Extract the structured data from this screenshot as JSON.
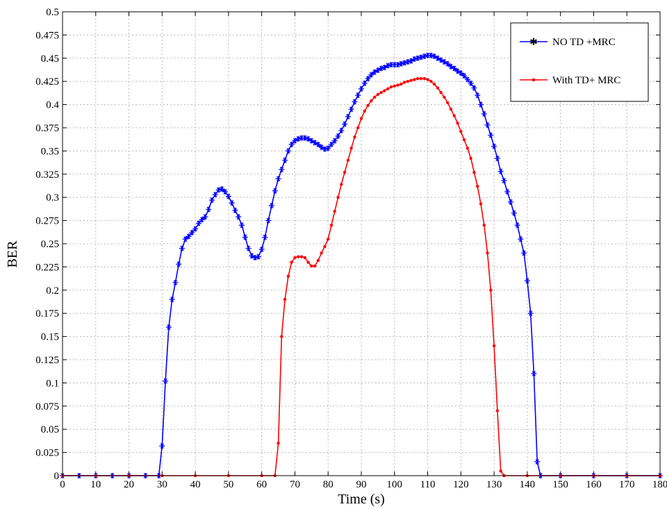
{
  "chart_data": {
    "type": "line",
    "title": "",
    "xlabel": "Time (s)",
    "ylabel": "BER",
    "xlim": [
      0,
      180
    ],
    "ylim": [
      0,
      0.5
    ],
    "x_ticks": [
      0,
      10,
      20,
      30,
      40,
      50,
      60,
      70,
      80,
      90,
      100,
      110,
      120,
      130,
      140,
      150,
      160,
      170,
      180
    ],
    "x_tick_labels": [
      "0",
      "10",
      "20",
      "30",
      "40",
      "50",
      "60",
      "70",
      "80",
      "90",
      "100",
      "110",
      "120",
      "130",
      "140",
      "150",
      "160",
      "170",
      "180"
    ],
    "y_ticks": [
      0,
      0.025,
      0.05,
      0.075,
      0.1,
      0.125,
      0.15,
      0.175,
      0.2,
      0.225,
      0.25,
      0.275,
      0.3,
      0.325,
      0.35,
      0.375,
      0.4,
      0.425,
      0.45,
      0.475,
      0.5
    ],
    "y_tick_labels": [
      "0",
      "0.025",
      "0.05",
      "0.075",
      "0.1",
      "0.125",
      "0.15",
      "0.175",
      "0.2",
      "0.225",
      "0.25",
      "0.275",
      "0.3",
      "0.325",
      "0.35",
      "0.375",
      "0.4",
      "0.425",
      "0.45",
      "0.475",
      "0.5"
    ],
    "grid": true,
    "legend_position": "top-right",
    "series": [
      {
        "name": "NO TD +MRC",
        "color": "#0000ff",
        "marker": "star",
        "points": [
          [
            0,
            0
          ],
          [
            5,
            0
          ],
          [
            10,
            0
          ],
          [
            15,
            0
          ],
          [
            20,
            0
          ],
          [
            25,
            0
          ],
          [
            29,
            0
          ],
          [
            30,
            0.032
          ],
          [
            31,
            0.102
          ],
          [
            32,
            0.16
          ],
          [
            33,
            0.19
          ],
          [
            34,
            0.208
          ],
          [
            35,
            0.228
          ],
          [
            36,
            0.245
          ],
          [
            37,
            0.255
          ],
          [
            38,
            0.258
          ],
          [
            39,
            0.262
          ],
          [
            40,
            0.266
          ],
          [
            41,
            0.272
          ],
          [
            42,
            0.276
          ],
          [
            43,
            0.279
          ],
          [
            44,
            0.287
          ],
          [
            45,
            0.297
          ],
          [
            46,
            0.303
          ],
          [
            47,
            0.308
          ],
          [
            48,
            0.309
          ],
          [
            49,
            0.306
          ],
          [
            50,
            0.301
          ],
          [
            51,
            0.294
          ],
          [
            52,
            0.286
          ],
          [
            53,
            0.279
          ],
          [
            54,
            0.27
          ],
          [
            55,
            0.257
          ],
          [
            56,
            0.245
          ],
          [
            57,
            0.237
          ],
          [
            58,
            0.235
          ],
          [
            59,
            0.236
          ],
          [
            60,
            0.244
          ],
          [
            61,
            0.257
          ],
          [
            62,
            0.275
          ],
          [
            63,
            0.291
          ],
          [
            64,
            0.307
          ],
          [
            65,
            0.32
          ],
          [
            66,
            0.33
          ],
          [
            67,
            0.34
          ],
          [
            68,
            0.35
          ],
          [
            69,
            0.357
          ],
          [
            70,
            0.361
          ],
          [
            71,
            0.363
          ],
          [
            72,
            0.364
          ],
          [
            73,
            0.364
          ],
          [
            74,
            0.363
          ],
          [
            75,
            0.361
          ],
          [
            76,
            0.359
          ],
          [
            77,
            0.357
          ],
          [
            78,
            0.354
          ],
          [
            79,
            0.352
          ],
          [
            80,
            0.353
          ],
          [
            81,
            0.357
          ],
          [
            82,
            0.361
          ],
          [
            83,
            0.366
          ],
          [
            84,
            0.372
          ],
          [
            85,
            0.379
          ],
          [
            86,
            0.387
          ],
          [
            87,
            0.395
          ],
          [
            88,
            0.403
          ],
          [
            89,
            0.41
          ],
          [
            90,
            0.417
          ],
          [
            91,
            0.423
          ],
          [
            92,
            0.428
          ],
          [
            93,
            0.432
          ],
          [
            94,
            0.435
          ],
          [
            95,
            0.437
          ],
          [
            96,
            0.439
          ],
          [
            97,
            0.44
          ],
          [
            98,
            0.442
          ],
          [
            99,
            0.443
          ],
          [
            100,
            0.443
          ],
          [
            101,
            0.443
          ],
          [
            102,
            0.444
          ],
          [
            103,
            0.445
          ],
          [
            104,
            0.446
          ],
          [
            105,
            0.447
          ],
          [
            106,
            0.449
          ],
          [
            107,
            0.45
          ],
          [
            108,
            0.451
          ],
          [
            109,
            0.452
          ],
          [
            110,
            0.453
          ],
          [
            111,
            0.453
          ],
          [
            112,
            0.452
          ],
          [
            113,
            0.45
          ],
          [
            114,
            0.448
          ],
          [
            115,
            0.446
          ],
          [
            116,
            0.444
          ],
          [
            117,
            0.441
          ],
          [
            118,
            0.439
          ],
          [
            119,
            0.436
          ],
          [
            120,
            0.434
          ],
          [
            121,
            0.431
          ],
          [
            122,
            0.427
          ],
          [
            123,
            0.423
          ],
          [
            124,
            0.418
          ],
          [
            125,
            0.41
          ],
          [
            126,
            0.4
          ],
          [
            127,
            0.39
          ],
          [
            128,
            0.378
          ],
          [
            129,
            0.367
          ],
          [
            130,
            0.355
          ],
          [
            131,
            0.342
          ],
          [
            132,
            0.328
          ],
          [
            133,
            0.318
          ],
          [
            134,
            0.306
          ],
          [
            135,
            0.295
          ],
          [
            136,
            0.283
          ],
          [
            137,
            0.27
          ],
          [
            138,
            0.255
          ],
          [
            139,
            0.24
          ],
          [
            140,
            0.21
          ],
          [
            141,
            0.175
          ],
          [
            142,
            0.11
          ],
          [
            143,
            0.015
          ],
          [
            144,
            0
          ],
          [
            150,
            0
          ],
          [
            160,
            0
          ],
          [
            170,
            0
          ],
          [
            180,
            0
          ]
        ]
      },
      {
        "name": "With TD+ MRC",
        "color": "#ff0000",
        "marker": "dot",
        "points": [
          [
            0,
            0
          ],
          [
            10,
            0
          ],
          [
            20,
            0
          ],
          [
            30,
            0
          ],
          [
            40,
            0
          ],
          [
            50,
            0
          ],
          [
            60,
            0
          ],
          [
            64,
            0
          ],
          [
            65,
            0.035
          ],
          [
            66,
            0.15
          ],
          [
            67,
            0.19
          ],
          [
            68,
            0.215
          ],
          [
            69,
            0.23
          ],
          [
            70,
            0.235
          ],
          [
            71,
            0.236
          ],
          [
            72,
            0.236
          ],
          [
            73,
            0.235
          ],
          [
            74,
            0.23
          ],
          [
            75,
            0.226
          ],
          [
            76,
            0.226
          ],
          [
            77,
            0.232
          ],
          [
            78,
            0.24
          ],
          [
            79,
            0.247
          ],
          [
            80,
            0.255
          ],
          [
            81,
            0.27
          ],
          [
            82,
            0.285
          ],
          [
            83,
            0.3
          ],
          [
            84,
            0.314
          ],
          [
            85,
            0.327
          ],
          [
            86,
            0.34
          ],
          [
            87,
            0.353
          ],
          [
            88,
            0.365
          ],
          [
            89,
            0.375
          ],
          [
            90,
            0.385
          ],
          [
            91,
            0.393
          ],
          [
            92,
            0.399
          ],
          [
            93,
            0.404
          ],
          [
            94,
            0.408
          ],
          [
            95,
            0.411
          ],
          [
            96,
            0.413
          ],
          [
            97,
            0.415
          ],
          [
            98,
            0.417
          ],
          [
            99,
            0.419
          ],
          [
            100,
            0.42
          ],
          [
            101,
            0.421
          ],
          [
            102,
            0.422
          ],
          [
            103,
            0.424
          ],
          [
            104,
            0.425
          ],
          [
            105,
            0.426
          ],
          [
            106,
            0.427
          ],
          [
            107,
            0.428
          ],
          [
            108,
            0.428
          ],
          [
            109,
            0.428
          ],
          [
            110,
            0.427
          ],
          [
            111,
            0.425
          ],
          [
            112,
            0.422
          ],
          [
            113,
            0.418
          ],
          [
            114,
            0.413
          ],
          [
            115,
            0.408
          ],
          [
            116,
            0.402
          ],
          [
            117,
            0.395
          ],
          [
            118,
            0.388
          ],
          [
            119,
            0.38
          ],
          [
            120,
            0.371
          ],
          [
            121,
            0.362
          ],
          [
            122,
            0.353
          ],
          [
            123,
            0.342
          ],
          [
            124,
            0.327
          ],
          [
            125,
            0.312
          ],
          [
            126,
            0.293
          ],
          [
            127,
            0.27
          ],
          [
            128,
            0.24
          ],
          [
            129,
            0.2
          ],
          [
            130,
            0.14
          ],
          [
            131,
            0.07
          ],
          [
            132,
            0.005
          ],
          [
            133,
            0
          ],
          [
            140,
            0
          ],
          [
            150,
            0
          ],
          [
            160,
            0
          ],
          [
            170,
            0
          ],
          [
            180,
            0
          ]
        ]
      }
    ]
  }
}
